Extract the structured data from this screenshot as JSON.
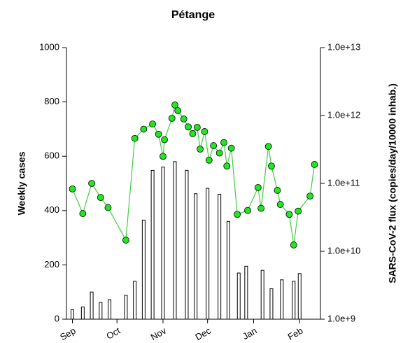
{
  "chart_data": {
    "type": "combo",
    "title": "Pétange",
    "ylabel": "Weekly cases",
    "y2label": "SARS-CoV-2 flux (copies/day/10000 inhab.)",
    "xlim": [
      -4,
      167
    ],
    "xticks": [
      {
        "value": 0,
        "label": "Sep"
      },
      {
        "value": 30,
        "label": "Oct"
      },
      {
        "value": 61,
        "label": "Nov"
      },
      {
        "value": 91,
        "label": "Dec"
      },
      {
        "value": 122,
        "label": "Jan"
      },
      {
        "value": 153,
        "label": "Feb"
      }
    ],
    "ylim": [
      0,
      1000
    ],
    "yticks": [
      0,
      200,
      400,
      600,
      800,
      1000
    ],
    "y2lim": [
      1000000000.0,
      10000000000000.0
    ],
    "y2log": true,
    "y2ticks": [
      {
        "value": 1000000000.0,
        "label": "1.0e+9"
      },
      {
        "value": 10000000000.0,
        "label": "1.0e+10"
      },
      {
        "value": 100000000000.0,
        "label": "1.0e+11"
      },
      {
        "value": 1000000000000.0,
        "label": "1.0e+12"
      },
      {
        "value": 10000000000000.0,
        "label": "1.0e+13"
      }
    ],
    "series": [
      {
        "type": "bar",
        "color": "#ffffff",
        "x": [
          0,
          7,
          13,
          19,
          25,
          36,
          42,
          48,
          54,
          61,
          69,
          77,
          83,
          91,
          99,
          105,
          112,
          117,
          128,
          134,
          141,
          149,
          153
        ],
        "values": [
          35,
          45,
          100,
          62,
          72,
          88,
          140,
          365,
          548,
          560,
          580,
          548,
          462,
          482,
          460,
          360,
          170,
          195,
          180,
          112,
          145,
          140,
          168
        ]
      },
      {
        "type": "line",
        "axis": "y2",
        "color": "#44cc44",
        "marker_color": "#22e622",
        "x": [
          0,
          7,
          13,
          19,
          24,
          36,
          42,
          48,
          54,
          58,
          61,
          62,
          67,
          69,
          71,
          75,
          78,
          81,
          84,
          86,
          89,
          92,
          95,
          99,
          102,
          104,
          107,
          111,
          118,
          125,
          127,
          132,
          134,
          138,
          140,
          146,
          149,
          152,
          160,
          163
        ],
        "values": [
          83000000000.0,
          36000000000.0,
          100000000000.0,
          62000000000.0,
          44000000000.0,
          14600000000.0,
          460000000000.0,
          630000000000.0,
          750000000000.0,
          530000000000.0,
          250000000000.0,
          440000000000.0,
          910000000000.0,
          1430000000000.0,
          1180000000000.0,
          890000000000.0,
          680000000000.0,
          540000000000.0,
          670000000000.0,
          320000000000.0,
          580000000000.0,
          220000000000.0,
          360000000000.0,
          280000000000.0,
          400000000000.0,
          180000000000.0,
          330000000000.0,
          35000000000.0,
          40000000000.0,
          87000000000.0,
          43000000000.0,
          350000000000.0,
          180000000000.0,
          79000000000.0,
          49000000000.0,
          35000000000.0,
          12400000000.0,
          39000000000.0,
          65000000000.0,
          190000000000.0
        ]
      }
    ]
  }
}
